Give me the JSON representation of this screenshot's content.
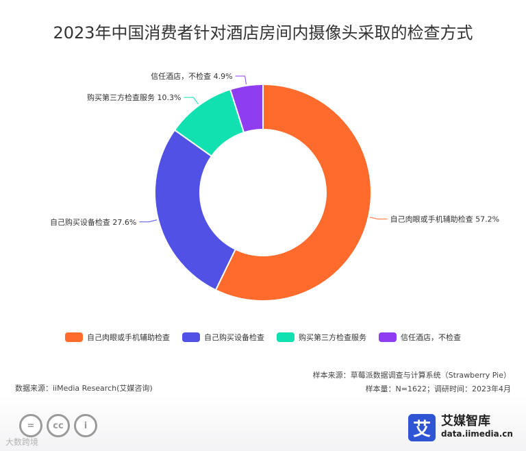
{
  "chart_data": {
    "type": "pie",
    "variant": "donut",
    "title": "2023年中国消费者针对酒店房间内摄像头采取的检查方式",
    "categories": [
      "自己肉眼或手机辅助检查",
      "自己购买设备检查",
      "购买第三方检查服务",
      "信任酒店，不检查"
    ],
    "values": [
      57.2,
      27.6,
      10.3,
      4.9
    ],
    "unit": "%",
    "data_labels": [
      "自己肉眼或手机辅助检查 57.2%",
      "自己购买设备检查 27.6%",
      "购买第三方检查服务 10.3%",
      "信任酒店，不检查 4.9%"
    ],
    "colors": [
      "#ff6b2d",
      "#5151e5",
      "#11e0b0",
      "#8e3ef0"
    ],
    "legend_position": "bottom"
  },
  "source": {
    "left": "数据来源：iiMedia Research(艾媒咨询)",
    "sample_source": "样本来源：草莓派数据调查与计算系统（Strawberry Pie）",
    "sample_info": "样本量：N=1622；调研时间：2023年4月"
  },
  "footer": {
    "cc_icons": [
      "equals-icon",
      "cc-icon",
      "person-icon"
    ],
    "cc_glyphs": [
      "=",
      "cc",
      "i"
    ],
    "watermark": "大数跨境",
    "brand_logo_char": "艾",
    "brand_name": "艾媒智库",
    "brand_url": "data.iimedia.cn"
  }
}
